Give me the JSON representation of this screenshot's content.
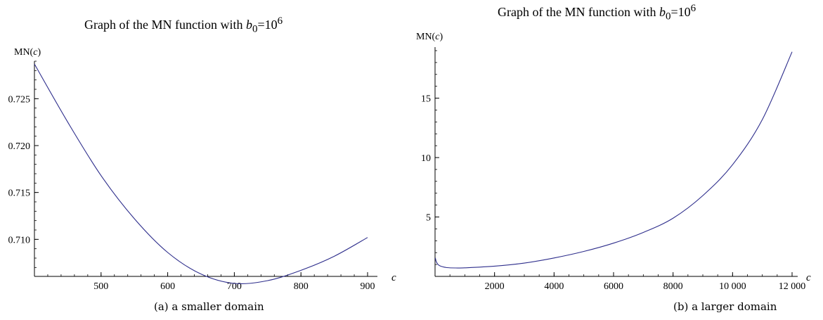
{
  "chart_data": [
    {
      "type": "line",
      "title": "Graph of the MN function with b0=10^6",
      "title_parts": {
        "prefix": "Graph of the MN function with ",
        "var": "b",
        "sub": "0",
        "mid": "=10",
        "sup": "6"
      },
      "xlabel": "c",
      "ylabel": "MN(c)",
      "ylabel_parts": {
        "pre": "MN(",
        "var": "c",
        "post": ")"
      },
      "xlim": [
        400,
        900
      ],
      "ylim": [
        0.705,
        0.729
      ],
      "x_ticks": [
        500,
        600,
        700,
        800,
        900
      ],
      "x_tick_labels": [
        "500",
        "600",
        "700",
        "800",
        "900"
      ],
      "y_ticks": [
        0.71,
        0.715,
        0.72,
        0.725
      ],
      "y_tick_labels": [
        "0.710",
        "0.715",
        "0.720",
        "0.725"
      ],
      "series": [
        {
          "color": "#2e2e8c",
          "x": [
            400,
            450,
            500,
            550,
            600,
            650,
            700,
            750,
            800,
            850,
            900
          ],
          "y": [
            0.7287,
            0.7225,
            0.7168,
            0.7122,
            0.7086,
            0.7063,
            0.7053,
            0.7056,
            0.7067,
            0.7082,
            0.7102
          ]
        }
      ],
      "caption": "(a) a smaller domain"
    },
    {
      "type": "line",
      "title": "Graph of the MN function with b0=10^6",
      "title_parts": {
        "prefix": "Graph of the MN function with ",
        "var": "b",
        "sub": "0",
        "mid": "=10",
        "sup": "6"
      },
      "xlabel": "c",
      "ylabel": "MN(c)",
      "ylabel_parts": {
        "pre": "MN(",
        "var": "c",
        "post": ")"
      },
      "xlim": [
        0,
        12000
      ],
      "ylim": [
        0,
        19
      ],
      "x_ticks": [
        2000,
        4000,
        6000,
        8000,
        10000,
        12000
      ],
      "x_tick_labels": [
        "2000",
        "4000",
        "6000",
        "8000",
        "10 000",
        "12 000"
      ],
      "y_ticks": [
        5,
        10,
        15
      ],
      "y_tick_labels": [
        "5",
        "10",
        "15"
      ],
      "series": [
        {
          "color": "#2e2e8c",
          "x": [
            10,
            40,
            100,
            200,
            400,
            700,
            1000,
            2000,
            3000,
            4000,
            5000,
            6000,
            7000,
            8000,
            9000,
            10000,
            11000,
            12000
          ],
          "y": [
            1.55,
            1.25,
            1.0,
            0.85,
            0.74,
            0.71,
            0.72,
            0.86,
            1.12,
            1.55,
            2.1,
            2.8,
            3.7,
            4.9,
            6.8,
            9.4,
            13.2,
            18.9
          ]
        }
      ],
      "caption": "(b) a larger domain"
    }
  ]
}
